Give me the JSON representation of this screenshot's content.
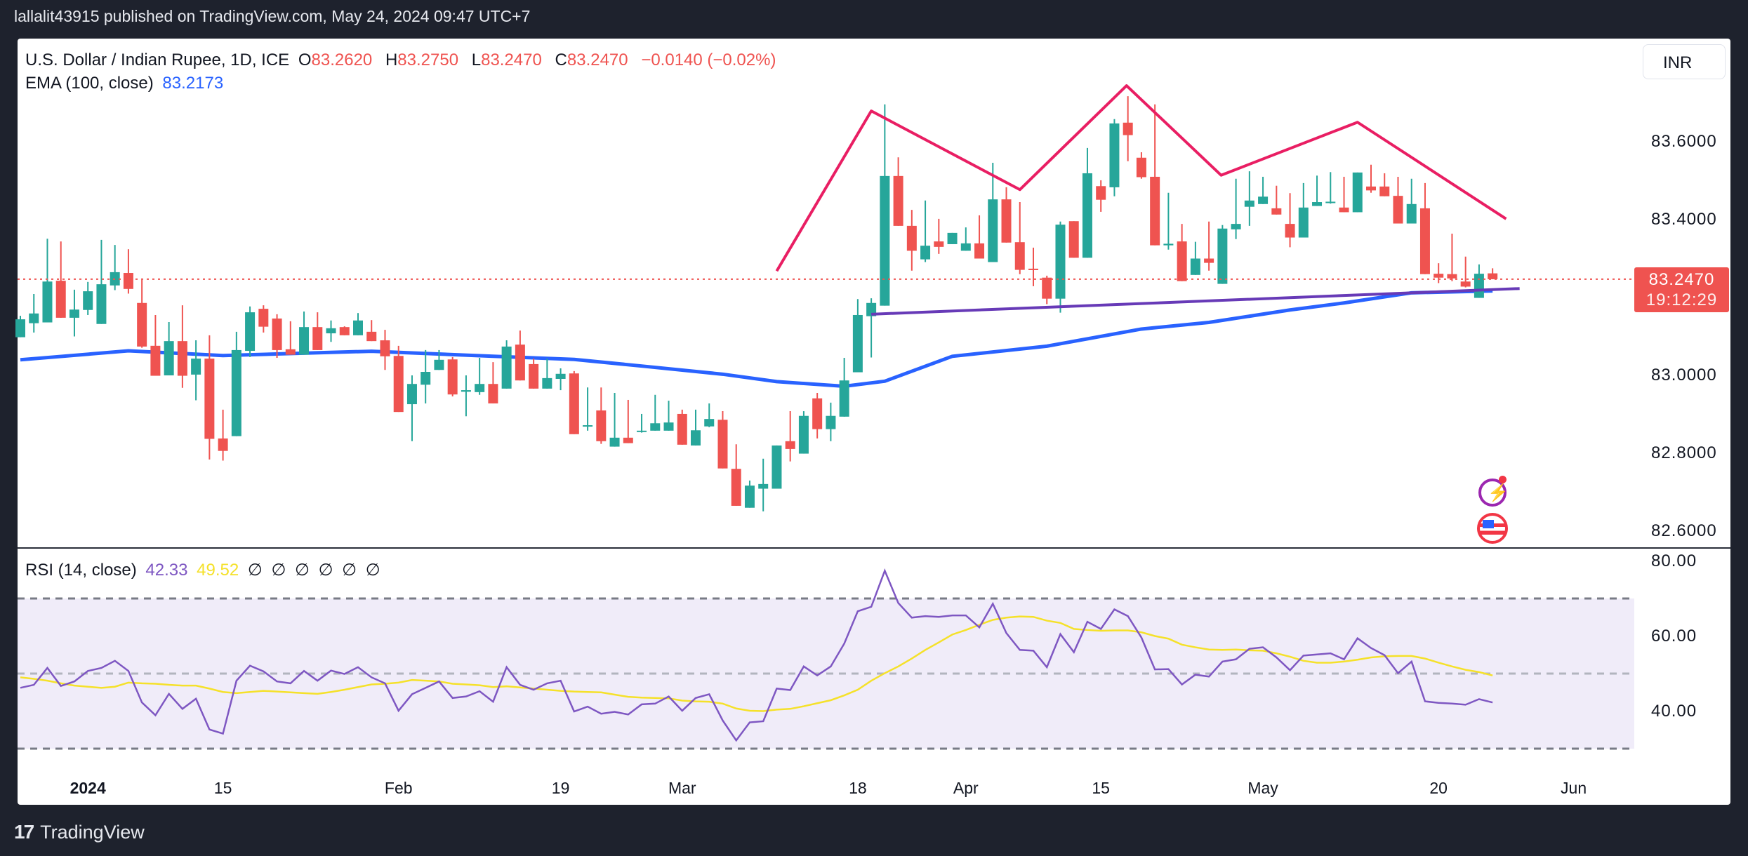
{
  "header": {
    "published_line": "lallalit43915 published on TradingView.com, May 24, 2024 09:47 UTC+7"
  },
  "legend": {
    "symbol": "U.S. Dollar / Indian Rupee, 1D, ICE",
    "o_label": "O",
    "o": "83.2620",
    "h_label": "H",
    "h": "83.2750",
    "l_label": "L",
    "l": "83.2470",
    "c_label": "C",
    "c": "83.2470",
    "change": "−0.0140 (−0.02%)",
    "ema_label": "EMA (100, close)",
    "ema_value": "83.2173",
    "rsi_label": "RSI (14, close)",
    "rsi_value": "42.33",
    "rsi_ma_value": "49.52",
    "rsi_na": [
      "∅",
      "∅",
      "∅",
      "∅",
      "∅",
      "∅"
    ]
  },
  "currency_button": "INR",
  "last_price": {
    "price": "83.2470",
    "countdown": "19:12:29"
  },
  "brand": "TradingView",
  "colors": {
    "up": "#26a69a",
    "down": "#ef5350",
    "ema": "#2962ff",
    "pattern": "#e91e63",
    "neckline": "#673ab7",
    "rsi": "#7e57c2",
    "rsi_ma": "#f5e12a",
    "rsi_band": "#f0ecf9"
  },
  "chart_data": {
    "type": "candlestick",
    "title": "U.S. Dollar / Indian Rupee, 1D, ICE",
    "price_ticks": [
      "83.6000",
      "83.4000",
      "83.0000",
      "82.8000",
      "82.6000"
    ],
    "price_tick_values": [
      83.6,
      83.4,
      83.0,
      82.8,
      82.6
    ],
    "ylim": [
      82.6,
      83.6
    ],
    "date_labels": [
      {
        "text": "2024",
        "bar": 6,
        "bold": true
      },
      {
        "text": "15",
        "bar": 16
      },
      {
        "text": "Feb",
        "bar": 29
      },
      {
        "text": "19",
        "bar": 41
      },
      {
        "text": "Mar",
        "bar": 50
      },
      {
        "text": "18",
        "bar": 63
      },
      {
        "text": "Apr",
        "bar": 71
      },
      {
        "text": "15",
        "bar": 81
      },
      {
        "text": "May",
        "bar": 93
      },
      {
        "text": "20",
        "bar": 106
      },
      {
        "text": "Jun",
        "bar": 116
      }
    ],
    "ohlc": [
      [
        83.098,
        83.153,
        83.098,
        83.144
      ],
      [
        83.134,
        83.209,
        83.11,
        83.159
      ],
      [
        83.136,
        83.351,
        83.136,
        83.241
      ],
      [
        83.243,
        83.344,
        83.148,
        83.148
      ],
      [
        83.148,
        83.22,
        83.1,
        83.169
      ],
      [
        83.168,
        83.24,
        83.155,
        83.216
      ],
      [
        83.132,
        83.348,
        83.132,
        83.234
      ],
      [
        83.231,
        83.335,
        83.219,
        83.265
      ],
      [
        83.263,
        83.324,
        83.21,
        83.222
      ],
      [
        83.186,
        83.245,
        83.071,
        83.074
      ],
      [
        83.076,
        83.155,
        82.999,
        82.999
      ],
      [
        83.0,
        83.137,
        83.0,
        83.088
      ],
      [
        83.088,
        83.18,
        82.968,
        82.999
      ],
      [
        83.002,
        83.09,
        82.936,
        83.043
      ],
      [
        83.043,
        83.103,
        82.784,
        82.837
      ],
      [
        82.838,
        82.912,
        82.781,
        82.806
      ],
      [
        82.844,
        83.112,
        82.844,
        83.065
      ],
      [
        83.063,
        83.177,
        83.047,
        83.162
      ],
      [
        83.171,
        83.18,
        83.11,
        83.125
      ],
      [
        83.146,
        83.157,
        83.045,
        83.065
      ],
      [
        83.067,
        83.139,
        83.053,
        83.053
      ],
      [
        83.053,
        83.164,
        83.053,
        83.124
      ],
      [
        83.124,
        83.162,
        83.065,
        83.065
      ],
      [
        83.108,
        83.141,
        83.086,
        83.121
      ],
      [
        83.124,
        83.126,
        83.103,
        83.103
      ],
      [
        83.103,
        83.16,
        83.103,
        83.141
      ],
      [
        83.112,
        83.142,
        83.088,
        83.088
      ],
      [
        83.09,
        83.117,
        83.014,
        83.049
      ],
      [
        83.05,
        83.076,
        82.906,
        82.906
      ],
      [
        82.926,
        83.0,
        82.831,
        82.978
      ],
      [
        82.976,
        83.065,
        82.928,
        83.009
      ],
      [
        83.014,
        83.065,
        83.014,
        83.04
      ],
      [
        83.041,
        83.047,
        82.946,
        82.951
      ],
      [
        82.958,
        83.0,
        82.895,
        82.962
      ],
      [
        82.957,
        83.045,
        82.95,
        82.978
      ],
      [
        82.978,
        83.034,
        82.928,
        82.928
      ],
      [
        82.966,
        83.09,
        82.966,
        83.074
      ],
      [
        83.079,
        83.115,
        82.987,
        82.987
      ],
      [
        83.029,
        83.043,
        82.966,
        82.966
      ],
      [
        82.966,
        83.043,
        82.966,
        82.993
      ],
      [
        82.991,
        83.018,
        82.962,
        83.004
      ],
      [
        83.005,
        83.011,
        82.849,
        82.849
      ],
      [
        82.87,
        82.969,
        82.858,
        82.872
      ],
      [
        82.91,
        82.969,
        82.824,
        82.831
      ],
      [
        82.817,
        82.955,
        82.817,
        82.84
      ],
      [
        82.84,
        82.937,
        82.826,
        82.826
      ],
      [
        82.856,
        82.901,
        82.853,
        82.858
      ],
      [
        82.858,
        82.95,
        82.858,
        82.877
      ],
      [
        82.858,
        82.935,
        82.858,
        82.879
      ],
      [
        82.901,
        82.912,
        82.822,
        82.822
      ],
      [
        82.82,
        82.912,
        82.82,
        82.859
      ],
      [
        82.869,
        82.928,
        82.867,
        82.888
      ],
      [
        82.886,
        82.908,
        82.761,
        82.761
      ],
      [
        82.76,
        82.823,
        82.665,
        82.665
      ],
      [
        82.66,
        82.73,
        82.66,
        82.717
      ],
      [
        82.709,
        82.786,
        82.651,
        82.721
      ],
      [
        82.709,
        82.82,
        82.709,
        82.82
      ],
      [
        82.831,
        82.908,
        82.779,
        82.811
      ],
      [
        82.799,
        82.908,
        82.799,
        82.896
      ],
      [
        82.941,
        82.955,
        82.838,
        82.862
      ],
      [
        82.862,
        82.93,
        82.831,
        82.896
      ],
      [
        82.894,
        83.045,
        82.894,
        82.987
      ],
      [
        83.008,
        83.196,
        83.008,
        83.155
      ],
      [
        83.152,
        83.198,
        83.046,
        83.186
      ],
      [
        83.179,
        83.696,
        83.179,
        83.512
      ],
      [
        83.512,
        83.56,
        83.384,
        83.384
      ],
      [
        83.384,
        83.425,
        83.269,
        83.32
      ],
      [
        83.298,
        83.449,
        83.291,
        83.333
      ],
      [
        83.344,
        83.402,
        83.312,
        83.33
      ],
      [
        83.337,
        83.366,
        83.337,
        83.366
      ],
      [
        83.32,
        83.38,
        83.32,
        83.339
      ],
      [
        83.339,
        83.411,
        83.3,
        83.3
      ],
      [
        83.291,
        83.546,
        83.291,
        83.452
      ],
      [
        83.452,
        83.483,
        83.341,
        83.341
      ],
      [
        83.342,
        83.445,
        83.26,
        83.271
      ],
      [
        83.274,
        83.328,
        83.229,
        83.271
      ],
      [
        83.251,
        83.256,
        83.183,
        83.197
      ],
      [
        83.197,
        83.395,
        83.161,
        83.387
      ],
      [
        83.396,
        83.396,
        83.302,
        83.302
      ],
      [
        83.302,
        83.584,
        83.302,
        83.519
      ],
      [
        83.486,
        83.501,
        83.42,
        83.451
      ],
      [
        83.483,
        83.658,
        83.46,
        83.647
      ],
      [
        83.649,
        83.717,
        83.55,
        83.617
      ],
      [
        83.559,
        83.573,
        83.505,
        83.509
      ],
      [
        83.51,
        83.696,
        83.334,
        83.334
      ],
      [
        83.334,
        83.469,
        83.323,
        83.338
      ],
      [
        83.344,
        83.389,
        83.242,
        83.242
      ],
      [
        83.258,
        83.343,
        83.258,
        83.3
      ],
      [
        83.3,
        83.395,
        83.269,
        83.289
      ],
      [
        83.235,
        83.386,
        83.235,
        83.377
      ],
      [
        83.375,
        83.505,
        83.35,
        83.389
      ],
      [
        83.433,
        83.524,
        83.384,
        83.449
      ],
      [
        83.44,
        83.51,
        83.44,
        83.459
      ],
      [
        83.429,
        83.487,
        83.413,
        83.413
      ],
      [
        83.389,
        83.468,
        83.329,
        83.354
      ],
      [
        83.354,
        83.494,
        83.354,
        83.431
      ],
      [
        83.435,
        83.513,
        83.435,
        83.445
      ],
      [
        83.445,
        83.522,
        83.441,
        83.446
      ],
      [
        83.431,
        83.51,
        83.419,
        83.419
      ],
      [
        83.419,
        83.521,
        83.419,
        83.521
      ],
      [
        83.485,
        83.541,
        83.469,
        83.475
      ],
      [
        83.485,
        83.519,
        83.46,
        83.46
      ],
      [
        83.461,
        83.51,
        83.39,
        83.39
      ],
      [
        83.39,
        83.505,
        83.39,
        83.44
      ],
      [
        83.429,
        83.494,
        83.26,
        83.26
      ],
      [
        83.261,
        83.288,
        83.237,
        83.251
      ],
      [
        83.26,
        83.364,
        83.242,
        83.249
      ],
      [
        83.241,
        83.305,
        83.226,
        83.228
      ],
      [
        83.199,
        83.285,
        83.199,
        83.261
      ],
      [
        83.262,
        83.275,
        83.247,
        83.247
      ]
    ],
    "ema100_points": [
      [
        1,
        83.04
      ],
      [
        9,
        83.063
      ],
      [
        16,
        83.051
      ],
      [
        27,
        83.062
      ],
      [
        36,
        83.049
      ],
      [
        42,
        83.041
      ],
      [
        47,
        83.024
      ],
      [
        53,
        83.003
      ],
      [
        57,
        82.984
      ],
      [
        62,
        82.972
      ],
      [
        65,
        82.985
      ],
      [
        70,
        83.049
      ],
      [
        77,
        83.075
      ],
      [
        84,
        83.119
      ],
      [
        89,
        83.136
      ],
      [
        95,
        83.168
      ],
      [
        99,
        83.186
      ],
      [
        104,
        83.212
      ],
      [
        110,
        83.217
      ]
    ],
    "pattern_line": [
      [
        57,
        83.268
      ],
      [
        64,
        83.679
      ],
      [
        75,
        83.477
      ],
      [
        82.9,
        83.744
      ],
      [
        89.9,
        83.514
      ],
      [
        100,
        83.65
      ],
      [
        111,
        83.402
      ]
    ],
    "neckline": [
      [
        64,
        83.157
      ],
      [
        112,
        83.223
      ]
    ],
    "rsi": {
      "ticks": [
        "80.00",
        "60.00",
        "40.00"
      ],
      "tick_values": [
        80,
        60,
        40
      ],
      "levels": [
        70,
        50,
        30
      ],
      "ylim": [
        20,
        90
      ],
      "values": [
        46.2,
        47.0,
        51.5,
        46.7,
        47.9,
        50.7,
        51.5,
        53.4,
        50.7,
        42.3,
        38.9,
        44.6,
        40.6,
        43.3,
        35.1,
        34.0,
        48.1,
        52.1,
        50.6,
        47.9,
        47.4,
        50.7,
        48.1,
        50.8,
        49.9,
        51.7,
        49.0,
        47.4,
        40.1,
        44.5,
        46.2,
        47.9,
        43.5,
        43.9,
        45.3,
        42.5,
        51.7,
        47.0,
        45.7,
        47.4,
        48.1,
        39.9,
        41.2,
        39.3,
        39.8,
        39.1,
        41.8,
        42.0,
        43.9,
        40.1,
        43.5,
        44.5,
        37.5,
        32.2,
        37.0,
        37.3,
        46.0,
        45.6,
        51.9,
        49.5,
        51.9,
        58.0,
        66.6,
        67.8,
        77.4,
        68.8,
        64.9,
        65.3,
        65.1,
        65.5,
        65.5,
        62.3,
        68.6,
        60.8,
        56.3,
        56.1,
        51.7,
        60.5,
        55.7,
        63.8,
        61.9,
        67.1,
        65.3,
        59.6,
        51.1,
        51.2,
        47.1,
        49.7,
        49.2,
        53.2,
        53.8,
        56.6,
        57.0,
        54.3,
        50.9,
        54.8,
        55.1,
        55.4,
        53.8,
        59.4,
        56.8,
        54.9,
        50.1,
        53.2,
        42.6,
        42.2,
        42.0,
        41.7,
        43.2,
        42.3
      ],
      "ma_values": [
        49.0,
        48.6,
        48.1,
        47.4,
        46.8,
        46.5,
        46.2,
        46.5,
        47.6,
        47.4,
        47.3,
        47.0,
        46.8,
        46.8,
        46.0,
        45.1,
        44.8,
        45.1,
        45.4,
        45.2,
        45.0,
        44.8,
        44.6,
        45.1,
        45.7,
        46.4,
        47.1,
        47.3,
        47.6,
        48.3,
        48.1,
        47.9,
        47.3,
        47.1,
        46.9,
        46.4,
        46.6,
        46.3,
        46.0,
        45.7,
        45.4,
        45.2,
        45.1,
        45.0,
        44.4,
        43.8,
        43.6,
        43.5,
        43.4,
        42.8,
        42.6,
        42.5,
        42.0,
        40.7,
        40.1,
        40.0,
        40.4,
        40.6,
        41.3,
        42.1,
        42.9,
        44.2,
        45.7,
        48.1,
        50.1,
        51.9,
        54.0,
        56.3,
        58.3,
        60.4,
        61.6,
        63.0,
        64.3,
        64.9,
        65.2,
        65.1,
        64.1,
        63.5,
        61.9,
        61.6,
        61.4,
        61.5,
        61.5,
        61.0,
        60.0,
        59.3,
        57.7,
        57.0,
        56.4,
        56.3,
        56.4,
        56.2,
        56.1,
        55.4,
        54.5,
        53.4,
        52.9,
        52.9,
        53.2,
        53.7,
        54.3,
        54.6,
        54.7,
        54.7,
        54.0,
        52.9,
        51.9,
        51.0,
        50.4,
        49.5
      ]
    }
  }
}
